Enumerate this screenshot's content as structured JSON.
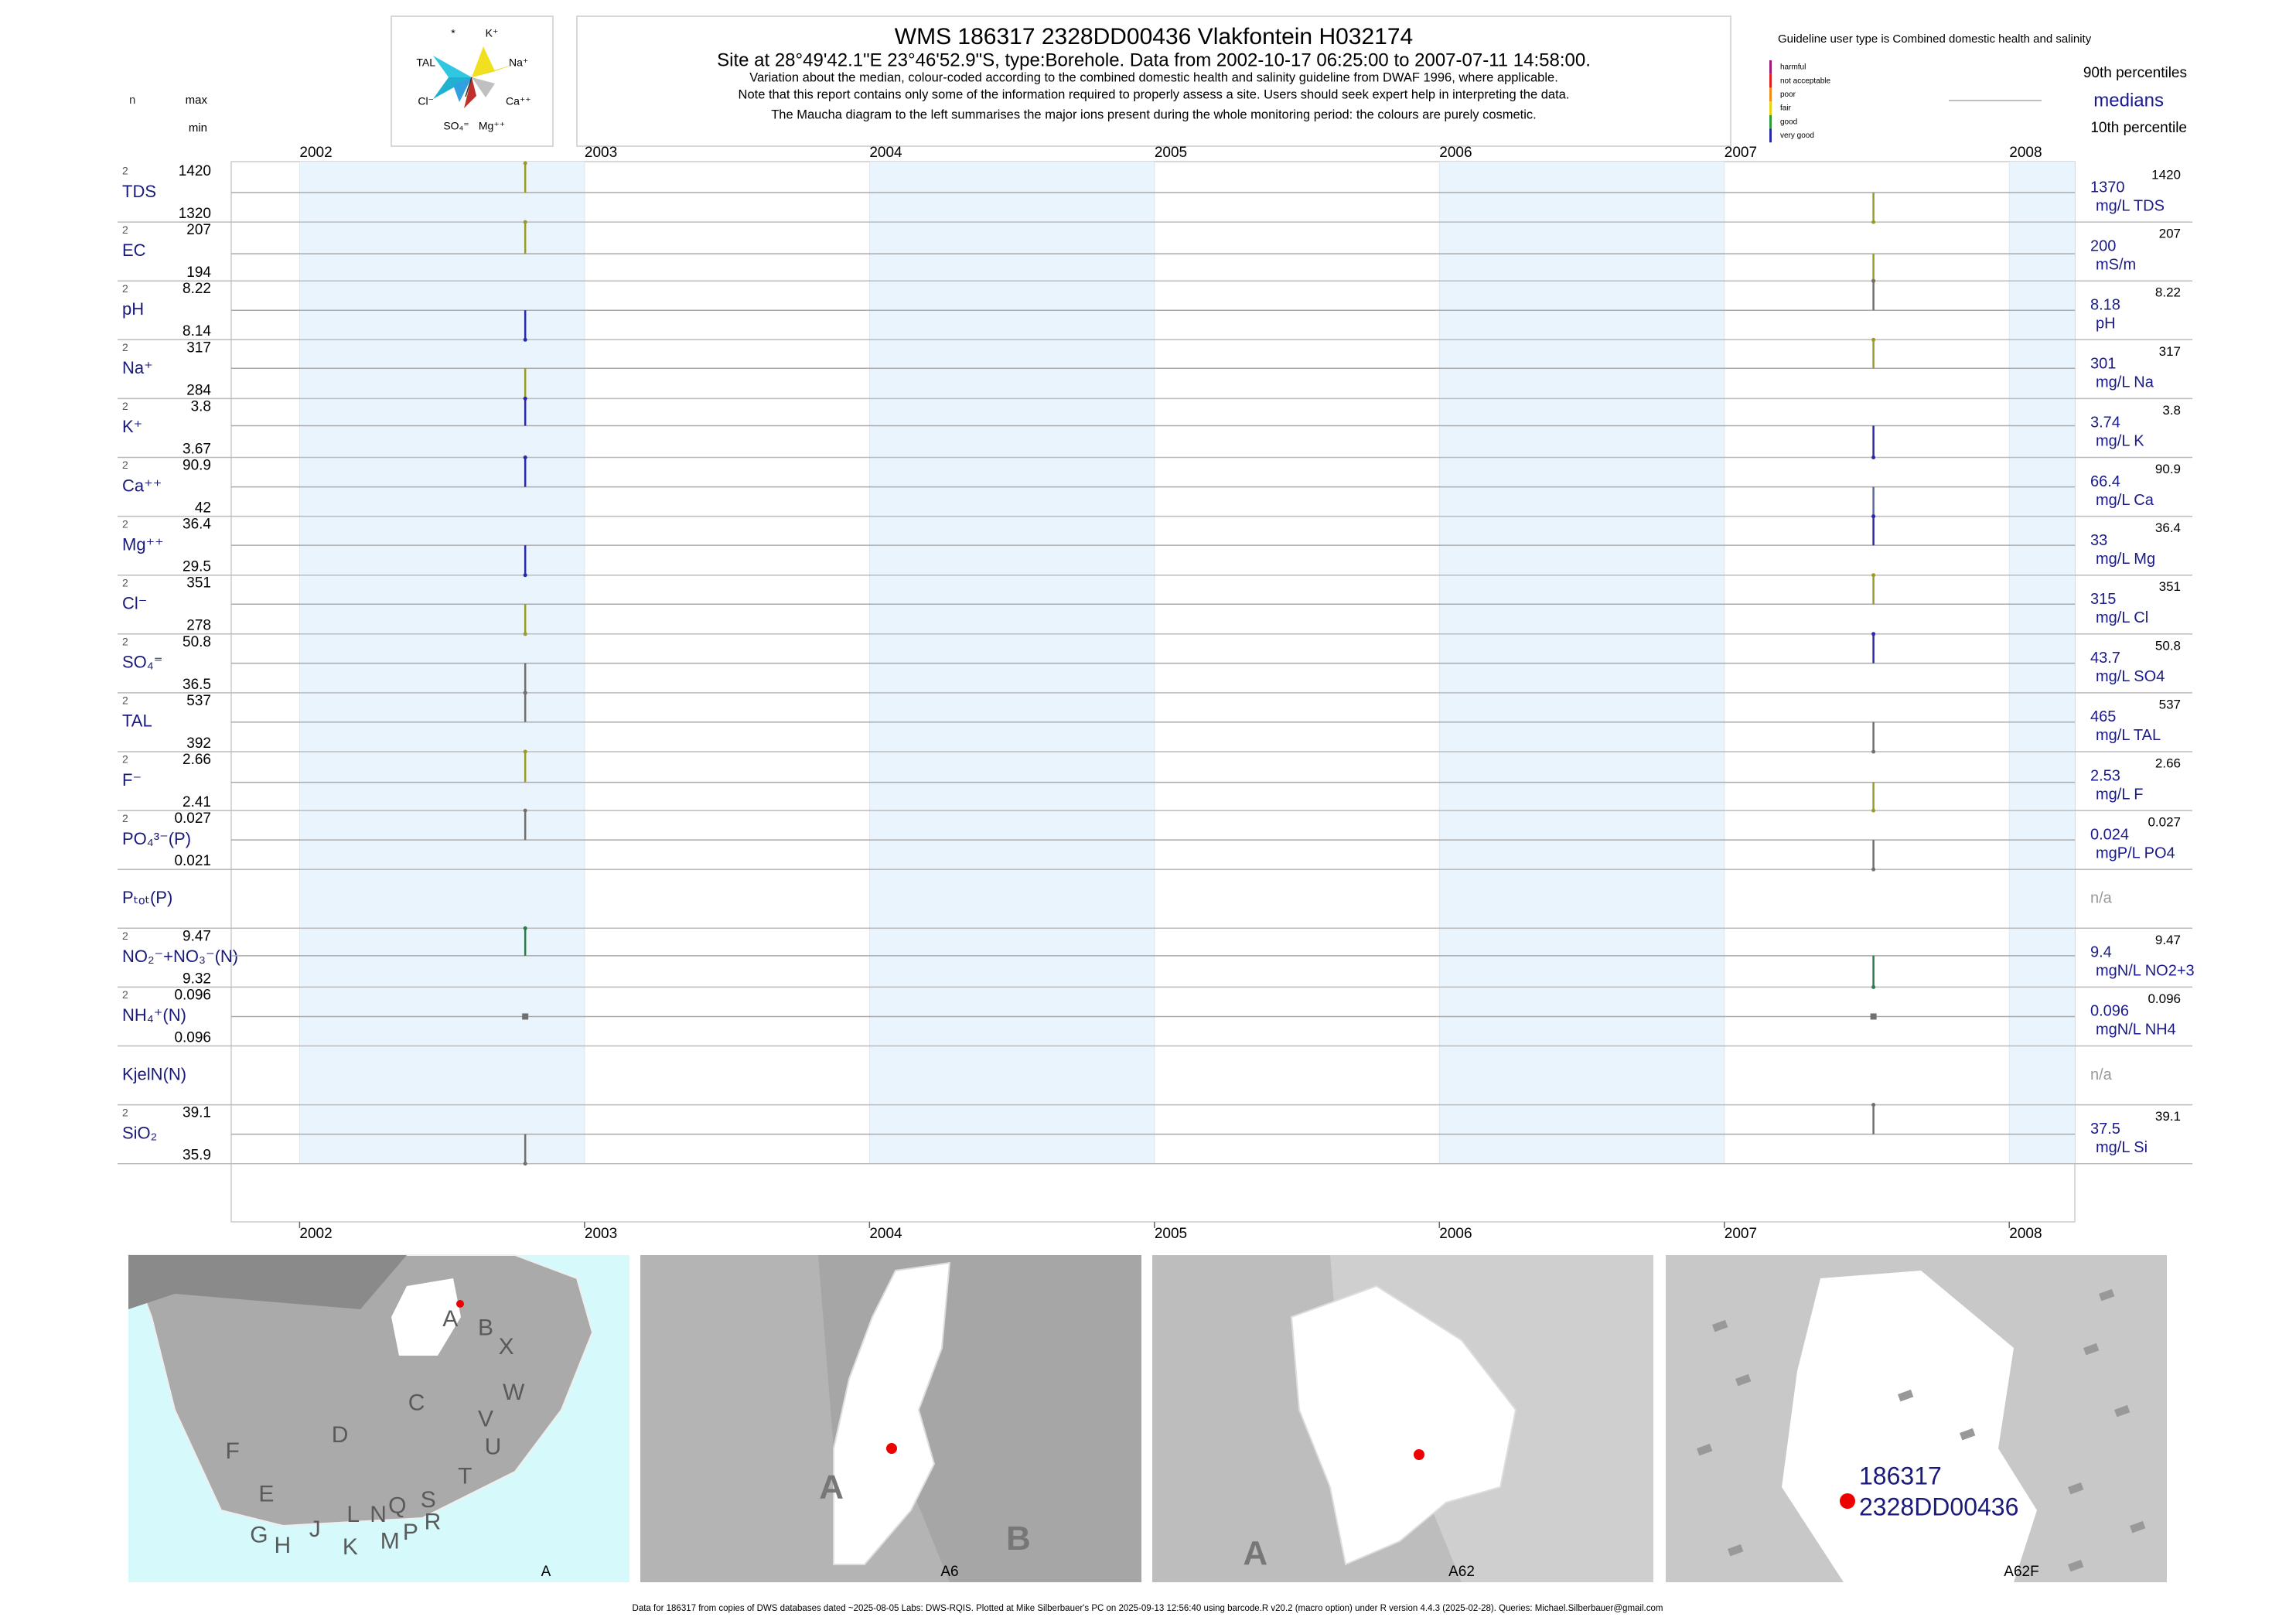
{
  "header": {
    "title": "WMS 186317 2328DD00436 Vlakfontein H032174",
    "subtitle": "Site at 28°49'42.1\"E 23°46'52.9\"S, type:Borehole.  Data from 2002-10-17 06:25:00 to 2007-07-11 14:58:00.",
    "notes": [
      "Variation about the median,  colour-coded according to the combined domestic health and salinity guideline from DWAF 1996, where applicable.",
      "Note that this report contains only some of the information required to properly assess a site. Users should seek expert help in interpreting the data.",
      "The Maucha diagram to the left summarises the major ions present during the whole monitoring period: the colours are purely cosmetic."
    ]
  },
  "maucha": {
    "labels": [
      "*",
      "K⁺",
      "TAL",
      "Na⁺",
      "Cl⁻",
      "Ca⁺⁺",
      "SO₄⁼",
      "Mg⁺⁺"
    ]
  },
  "legend": {
    "title": "Guideline user type is Combined domestic health and salinity",
    "classes": [
      {
        "name": "harmful",
        "color": "#a01a78"
      },
      {
        "name": "not acceptable",
        "color": "#e02020"
      },
      {
        "name": "poor",
        "color": "#f08c1a"
      },
      {
        "name": "fair",
        "color": "#e6d21a"
      },
      {
        "name": "good",
        "color": "#2e9a3a"
      },
      {
        "name": "very good",
        "color": "#2a2aa8"
      }
    ],
    "p90": "90th percentiles",
    "medians": "medians",
    "p10": "10th percentile"
  },
  "columns": {
    "n": "n",
    "max": "max",
    "min": "min"
  },
  "chart_data": {
    "type": "strip",
    "xlim": [
      2001.76,
      2008.23
    ],
    "xticks": [
      2002,
      2003,
      2004,
      2005,
      2006,
      2007,
      2008
    ],
    "sample_dates": [
      "2002-10-17",
      "2007-07-11"
    ],
    "rows": [
      {
        "label": "TDS",
        "n": 2,
        "max": 1420,
        "min": 1320,
        "median": 1370,
        "unit": "mg/L TDS",
        "values": [
          1420,
          1320
        ],
        "colors": [
          "#9a9a2a",
          "#9a9a2a"
        ]
      },
      {
        "label": "EC",
        "n": 2,
        "max": 207,
        "min": 194,
        "median": 200,
        "unit": "mS/m",
        "values": [
          207,
          194
        ],
        "colors": [
          "#9a9a2a",
          "#9a9a2a"
        ]
      },
      {
        "label": "pH",
        "n": 2,
        "max": 8.22,
        "min": 8.14,
        "median": 8.18,
        "unit": "pH",
        "values": [
          8.14,
          8.22
        ],
        "colors": [
          "#2a2aa8",
          "#707070"
        ]
      },
      {
        "label": "Na⁺",
        "n": 2,
        "max": 317,
        "min": 284,
        "median": 301,
        "unit": "mg/L Na",
        "values": [
          284,
          317
        ],
        "colors": [
          "#9a9a2a",
          "#9a9a2a"
        ]
      },
      {
        "label": "K⁺",
        "n": 2,
        "max": 3.8,
        "min": 3.67,
        "median": 3.74,
        "unit": "mg/L K",
        "values": [
          3.8,
          3.67
        ],
        "colors": [
          "#2a2aa8",
          "#2a2aa8"
        ]
      },
      {
        "label": "Ca⁺⁺",
        "n": 2,
        "max": 90.9,
        "min": 42,
        "median": 66.4,
        "unit": "mg/L Ca",
        "values": [
          90.9,
          42
        ],
        "colors": [
          "#2a2aa8",
          "#5a6aa0"
        ]
      },
      {
        "label": "Mg⁺⁺",
        "n": 2,
        "max": 36.4,
        "min": 29.5,
        "median": 33,
        "unit": "mg/L Mg",
        "values": [
          29.5,
          36.4
        ],
        "colors": [
          "#2a2aa8",
          "#2a2aa8"
        ]
      },
      {
        "label": "Cl⁻",
        "n": 2,
        "max": 351,
        "min": 278,
        "median": 315,
        "unit": "mg/L Cl",
        "values": [
          278,
          351
        ],
        "colors": [
          "#9a9a2a",
          "#9a9a2a"
        ]
      },
      {
        "label": "SO₄⁼",
        "n": 2,
        "max": 50.8,
        "min": 36.5,
        "median": 43.7,
        "unit": "mg/L SO4",
        "values": [
          36.5,
          50.8
        ],
        "colors": [
          "#707070",
          "#2a2aa8"
        ]
      },
      {
        "label": "TAL",
        "n": 2,
        "max": 537,
        "min": 392,
        "median": 465,
        "unit": "mg/L TAL",
        "values": [
          537,
          392
        ],
        "colors": [
          "#707070",
          "#707070"
        ]
      },
      {
        "label": "F⁻",
        "n": 2,
        "max": 2.66,
        "min": 2.41,
        "median": 2.53,
        "unit": "mg/L F",
        "values": [
          2.66,
          2.41
        ],
        "colors": [
          "#9a9a2a",
          "#9a9a2a"
        ]
      },
      {
        "label": "PO₄³⁻(P)",
        "n": 2,
        "max": 0.027,
        "min": 0.021,
        "median": 0.024,
        "unit": "mgP/L PO4",
        "values": [
          0.027,
          0.021
        ],
        "colors": [
          "#707070",
          "#707070"
        ]
      },
      {
        "label": "Pₜₒₜ(P)",
        "note": "n/a"
      },
      {
        "label": "NO₂⁻+NO₃⁻(N)",
        "n": 2,
        "max": 9.47,
        "min": 9.32,
        "median": 9.4,
        "unit": "mgN/L NO2+3",
        "values": [
          9.47,
          9.32
        ],
        "colors": [
          "#2e7a4a",
          "#2e7a4a"
        ]
      },
      {
        "label": "NH₄⁺(N)",
        "n": 2,
        "max": 0.096,
        "min": 0.096,
        "median": 0.096,
        "unit": "mgN/L NH4",
        "values": [
          0.096,
          0.096
        ],
        "colors": [
          "#707070",
          "#707070"
        ]
      },
      {
        "label": "KjelN(N)",
        "note": "n/a"
      },
      {
        "label": "SiO₂",
        "n": 2,
        "max": 39.1,
        "min": 35.9,
        "median": 37.5,
        "unit": "mg/L Si",
        "values": [
          35.9,
          39.1
        ],
        "colors": [
          "#707070",
          "#707070"
        ]
      }
    ]
  },
  "maps": [
    {
      "caption": "A",
      "labels": [
        "A",
        "B",
        "X",
        "C",
        "W",
        "V",
        "U",
        "D",
        "T",
        "F",
        "E",
        "L",
        "N",
        "Q",
        "S",
        "R",
        "J",
        "G",
        "H",
        "K",
        "M",
        "P"
      ]
    },
    {
      "caption": "A6",
      "labels": [
        "A",
        "B"
      ]
    },
    {
      "caption": "A62",
      "labels": [
        "A"
      ]
    },
    {
      "caption": "A62F",
      "labels": [
        "186317",
        "2328DD00436"
      ]
    }
  ],
  "footer": "Data for 186317 from copies of DWS databases dated ~2025-08-05 Labs: DWS-RQIS. Plotted at Mike Silberbauer's PC on 2025-09-13 12:56:40 using barcode.R v20.2 (macro option) under R version 4.4.3 (2025-02-28). Queries: Michael.Silberbauer@gmail.com"
}
